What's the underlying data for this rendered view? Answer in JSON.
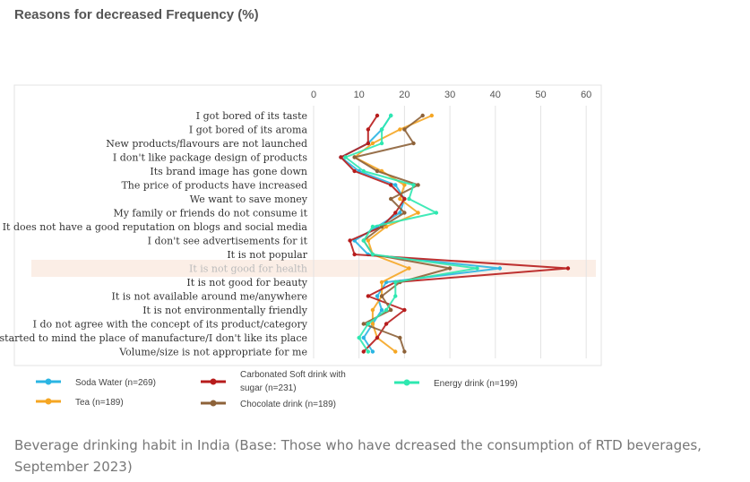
{
  "page": {
    "title": "Reasons for decreased Frequency (%)",
    "caption": "Beverage drinking habit in India (Base: Those who have dcreased the consumption of RTD beverages, September 2023)"
  },
  "chart_data": {
    "type": "line",
    "title": "Reasons for decreased Frequency (%)",
    "xlabel": "",
    "ylabel": "",
    "xlim": [
      0,
      60
    ],
    "x_ticks": [
      "0",
      "10",
      "20",
      "30",
      "40",
      "50",
      "60"
    ],
    "grid": true,
    "legend_position": "bottom",
    "highlighted_category": "It is not good for health",
    "categories": [
      "I got bored of its taste",
      "I got bored of its aroma",
      "New products/flavours are not launched",
      "I don't like package design of products",
      "Its brand image has gone down",
      "The price of products have increased",
      "We want to save money",
      "My family or friends do not consume it",
      "It does not have a good reputation on blogs and social media",
      "I don't see advertisements for it",
      "It is not popular",
      "It is not good for health",
      "It is not good for beauty",
      "It is not available around me/anywhere",
      "It is not environmentally friendly",
      "I do not agree with the concept of its product/category",
      "I started to mind the place of manufacture/I don't like its place",
      "Volume/size is not appropriate for me"
    ],
    "series": [
      {
        "name": "Soda Water (n=269)",
        "color": "#2bb5e3",
        "values": [
          17,
          15,
          12,
          6,
          10,
          18,
          20,
          19,
          14,
          9,
          12,
          41,
          16,
          14,
          15,
          13,
          11,
          13
        ]
      },
      {
        "name": "Tea (n=189)",
        "color": "#f5a623",
        "values": [
          26,
          19,
          13,
          9,
          15,
          20,
          19,
          23,
          16,
          12,
          13,
          21,
          15,
          15,
          13,
          13,
          14,
          18
        ]
      },
      {
        "name": "Carbonated Soft drink with sugar (n=231)",
        "color": "#b71c1c",
        "values": [
          14,
          12,
          12,
          6,
          9,
          17,
          20,
          18,
          15,
          8,
          9,
          56,
          18,
          12,
          20,
          16,
          14,
          11
        ]
      },
      {
        "name": "Chocolate drink (n=189)",
        "color": "#8d6239",
        "values": [
          24,
          20,
          22,
          9,
          14,
          23,
          17,
          20,
          15,
          11,
          13,
          30,
          19,
          15,
          17,
          11,
          19,
          20
        ]
      },
      {
        "name": "Energy drink (n=199)",
        "color": "#2ee8b0",
        "values": [
          17,
          15,
          15,
          7,
          11,
          22,
          21,
          27,
          13,
          11,
          13,
          36,
          18,
          18,
          16,
          12,
          10,
          12
        ]
      }
    ]
  },
  "legend": {
    "soda": "Soda Water (n=269)",
    "csd_line1": "Carbonated Soft drink with",
    "csd_line2": "sugar (n=231)",
    "energy": "Energy drink (n=199)",
    "tea": "Tea (n=189)",
    "chocolate": "Chocolate drink (n=189)"
  }
}
